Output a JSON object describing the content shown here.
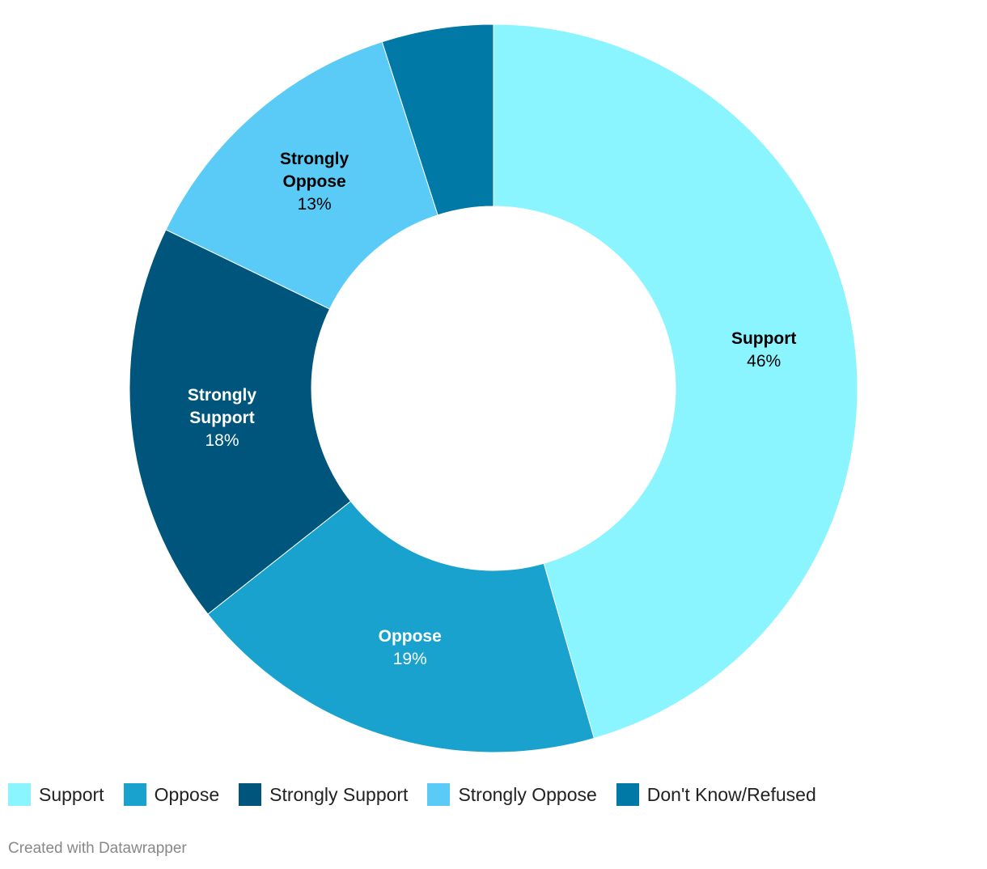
{
  "chart_data": {
    "type": "donut",
    "categories": [
      "Support",
      "Oppose",
      "Strongly Support",
      "Strongly Oppose",
      "Don't Know/Refused"
    ],
    "values": [
      46,
      19,
      18,
      13,
      5
    ],
    "value_labels": [
      "46%",
      "19%",
      "18%",
      "13%",
      null
    ],
    "colors": [
      "#8af4ff",
      "#1aa2cf",
      "#00557c",
      "#59cbf6",
      "#0079a7"
    ],
    "footer": "Created with Datawrapper"
  }
}
